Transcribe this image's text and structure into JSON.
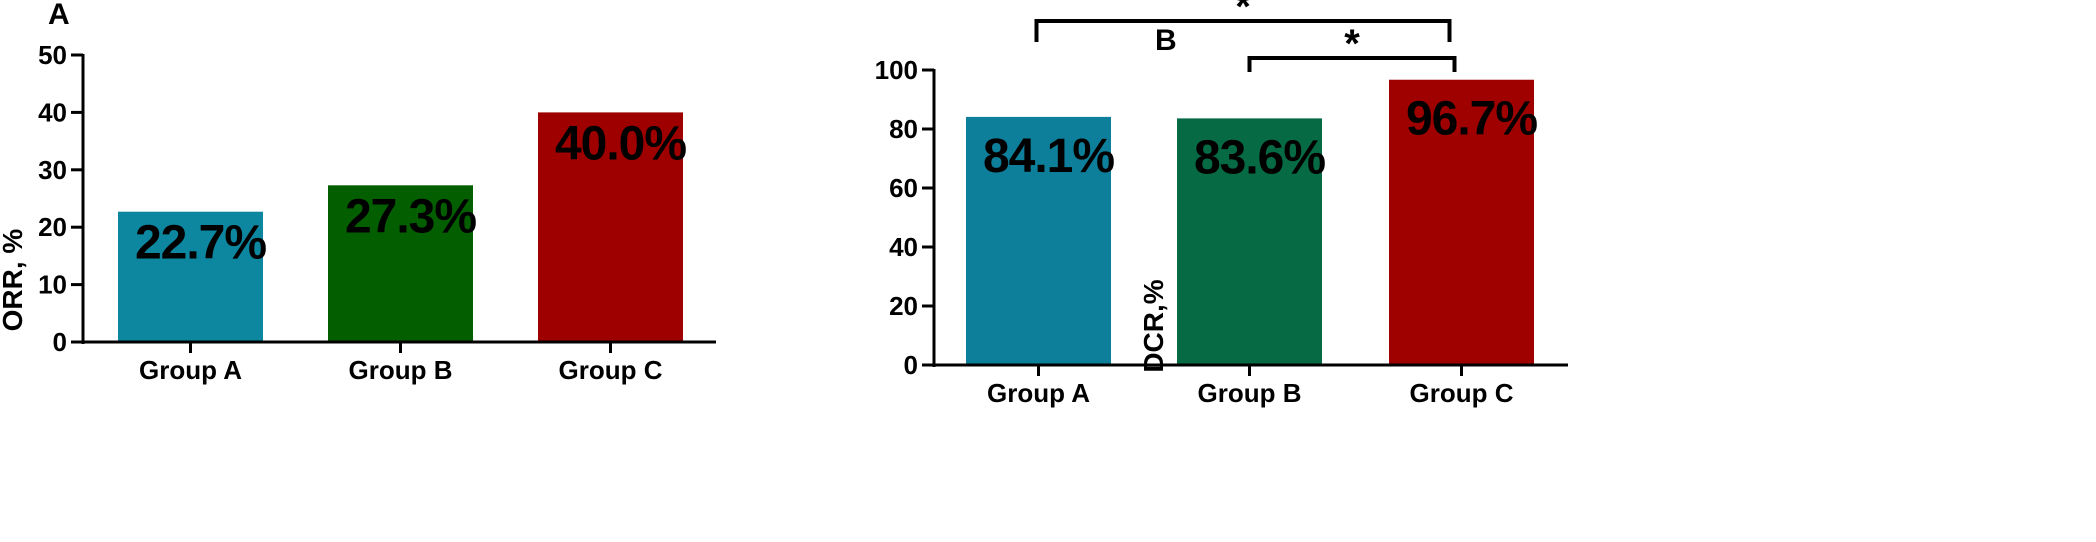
{
  "chart_data": [
    {
      "type": "bar",
      "panel_label": "A",
      "categories": [
        "Group A",
        "Group B",
        "Group C"
      ],
      "values": [
        22.7,
        27.3,
        40.0
      ],
      "value_labels": [
        "22.7%",
        "27.3%",
        "40.0%"
      ],
      "colors": [
        "#0d86a0",
        "#035e00",
        "#9e0000"
      ],
      "xlabel": "",
      "ylabel": "ORR, %",
      "ylim": [
        0,
        50
      ],
      "yticks": [
        "0",
        "10",
        "20",
        "30",
        "40",
        "50"
      ],
      "significance": []
    },
    {
      "type": "bar",
      "panel_label": "B",
      "categories": [
        "Group A",
        "Group B",
        "Group C"
      ],
      "values": [
        84.1,
        83.6,
        96.7
      ],
      "value_labels": [
        "84.1%",
        "83.6%",
        "96.7%"
      ],
      "colors": [
        "#0e7f9a",
        "#066a45",
        "#9f0000"
      ],
      "xlabel": "",
      "ylabel": "DCR,%",
      "ylim": [
        0,
        100
      ],
      "yticks": [
        "0",
        "20",
        "40",
        "60",
        "80",
        "100"
      ],
      "significance": [
        {
          "from": "Group A",
          "to": "Group C",
          "label": "*"
        },
        {
          "from": "Group B",
          "to": "Group C",
          "label": "*"
        }
      ]
    }
  ]
}
